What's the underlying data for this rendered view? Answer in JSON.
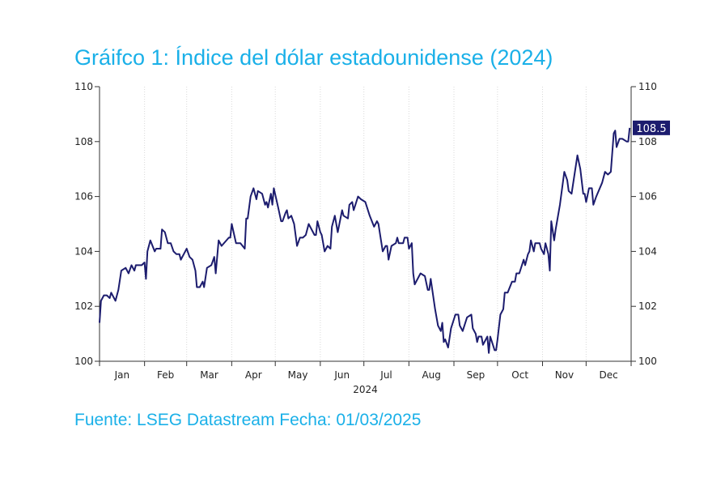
{
  "title": "Gráifco 1: Índice del dólar estadounidense (2024)",
  "source": "Fuente: LSEG Datastream Fecha: 01/03/2025",
  "chart_data": {
    "type": "line",
    "title": "Gráifco 1: Índice del dólar estadounidense (2024)",
    "xlabel": "2024",
    "ylabel": "",
    "ylim": [
      100,
      110
    ],
    "xlim_days": [
      0,
      366
    ],
    "yticks": [
      "100",
      "102",
      "104",
      "106",
      "108",
      "110"
    ],
    "ytick_values": [
      100,
      102,
      104,
      106,
      108,
      110
    ],
    "month_labels": [
      "Jan",
      "Feb",
      "Mar",
      "Apr",
      "May",
      "Jun",
      "Jul",
      "Aug",
      "Sep",
      "Oct",
      "Nov",
      "Dec"
    ],
    "month_start_days": [
      0,
      31,
      60,
      91,
      121,
      152,
      182,
      213,
      244,
      274,
      305,
      335,
      366
    ],
    "grid": "vertical dotted at month boundaries",
    "last_value_label": "108.5",
    "colors": {
      "line": "#1c1c6e",
      "badge": "#1c1c6e",
      "title": "#1ab0e8"
    },
    "series": [
      {
        "name": "Índice del dólar estadounidense",
        "points": [
          [
            0,
            101.4
          ],
          [
            1,
            102.2
          ],
          [
            3,
            102.4
          ],
          [
            5,
            102.4
          ],
          [
            7,
            102.3
          ],
          [
            8,
            102.5
          ],
          [
            11,
            102.2
          ],
          [
            13,
            102.6
          ],
          [
            15,
            103.3
          ],
          [
            18,
            103.4
          ],
          [
            20,
            103.2
          ],
          [
            22,
            103.5
          ],
          [
            24,
            103.3
          ],
          [
            25,
            103.5
          ],
          [
            29,
            103.5
          ],
          [
            31,
            103.6
          ],
          [
            32,
            103.0
          ],
          [
            33,
            104.0
          ],
          [
            35,
            104.4
          ],
          [
            38,
            104.0
          ],
          [
            39,
            104.1
          ],
          [
            42,
            104.1
          ],
          [
            43,
            104.8
          ],
          [
            45,
            104.7
          ],
          [
            47,
            104.3
          ],
          [
            49,
            104.3
          ],
          [
            51,
            104.0
          ],
          [
            53,
            103.9
          ],
          [
            55,
            103.9
          ],
          [
            56,
            103.7
          ],
          [
            58,
            103.9
          ],
          [
            60,
            104.1
          ],
          [
            62,
            103.8
          ],
          [
            64,
            103.7
          ],
          [
            66,
            103.3
          ],
          [
            67,
            102.7
          ],
          [
            69,
            102.7
          ],
          [
            71,
            102.9
          ],
          [
            72,
            102.7
          ],
          [
            74,
            103.4
          ],
          [
            77,
            103.5
          ],
          [
            79,
            103.8
          ],
          [
            80,
            103.2
          ],
          [
            82,
            104.4
          ],
          [
            84,
            104.2
          ],
          [
            89,
            104.5
          ],
          [
            90,
            104.5
          ],
          [
            91,
            105.0
          ],
          [
            94,
            104.3
          ],
          [
            97,
            104.3
          ],
          [
            100,
            104.1
          ],
          [
            101,
            105.2
          ],
          [
            102,
            105.2
          ],
          [
            104,
            106.0
          ],
          [
            106,
            106.3
          ],
          [
            108,
            105.9
          ],
          [
            109,
            106.2
          ],
          [
            112,
            106.1
          ],
          [
            114,
            105.7
          ],
          [
            115,
            105.8
          ],
          [
            116,
            105.6
          ],
          [
            118,
            106.1
          ],
          [
            119,
            105.7
          ],
          [
            120,
            106.3
          ],
          [
            123,
            105.6
          ],
          [
            125,
            105.1
          ],
          [
            126,
            105.1
          ],
          [
            128,
            105.4
          ],
          [
            129,
            105.5
          ],
          [
            130,
            105.2
          ],
          [
            132,
            105.3
          ],
          [
            134,
            105.0
          ],
          [
            136,
            104.2
          ],
          [
            138,
            104.5
          ],
          [
            140,
            104.5
          ],
          [
            142,
            104.6
          ],
          [
            144,
            105.0
          ],
          [
            148,
            104.6
          ],
          [
            149,
            104.6
          ],
          [
            150,
            105.1
          ],
          [
            152,
            104.7
          ],
          [
            153,
            104.6
          ],
          [
            155,
            104.0
          ],
          [
            157,
            104.2
          ],
          [
            159,
            104.1
          ],
          [
            160,
            104.9
          ],
          [
            162,
            105.3
          ],
          [
            164,
            104.7
          ],
          [
            167,
            105.5
          ],
          [
            168,
            105.3
          ],
          [
            171,
            105.2
          ],
          [
            172,
            105.7
          ],
          [
            174,
            105.8
          ],
          [
            175,
            105.5
          ],
          [
            178,
            106.0
          ],
          [
            180,
            105.9
          ],
          [
            183,
            105.8
          ],
          [
            186,
            105.3
          ],
          [
            189,
            104.9
          ],
          [
            191,
            105.1
          ],
          [
            192,
            105.0
          ],
          [
            195,
            104.0
          ],
          [
            197,
            104.2
          ],
          [
            198,
            104.2
          ],
          [
            199,
            103.7
          ],
          [
            201,
            104.2
          ],
          [
            204,
            104.3
          ],
          [
            205,
            104.5
          ],
          [
            206,
            104.3
          ],
          [
            209,
            104.3
          ],
          [
            210,
            104.5
          ],
          [
            212,
            104.5
          ],
          [
            213,
            104.1
          ],
          [
            215,
            104.3
          ],
          [
            216,
            103.2
          ],
          [
            217,
            102.8
          ],
          [
            221,
            103.2
          ],
          [
            224,
            103.1
          ],
          [
            226,
            102.6
          ],
          [
            227,
            102.6
          ],
          [
            228,
            103.0
          ],
          [
            231,
            101.9
          ],
          [
            233,
            101.3
          ],
          [
            235,
            101.1
          ],
          [
            236,
            101.4
          ],
          [
            237,
            100.7
          ],
          [
            238,
            100.8
          ],
          [
            240,
            100.5
          ],
          [
            242,
            101.2
          ],
          [
            245,
            101.7
          ],
          [
            246,
            101.7
          ],
          [
            247,
            101.7
          ],
          [
            248,
            101.3
          ],
          [
            250,
            101.1
          ],
          [
            253,
            101.6
          ],
          [
            256,
            101.7
          ],
          [
            257,
            101.2
          ],
          [
            259,
            101.0
          ],
          [
            260,
            100.7
          ],
          [
            261,
            100.9
          ],
          [
            263,
            100.9
          ],
          [
            264,
            100.6
          ],
          [
            267,
            100.9
          ],
          [
            268,
            100.3
          ],
          [
            269,
            100.9
          ],
          [
            272,
            100.4
          ],
          [
            273,
            100.4
          ],
          [
            274,
            100.8
          ],
          [
            276,
            101.7
          ],
          [
            278,
            101.9
          ],
          [
            279,
            102.5
          ],
          [
            281,
            102.5
          ],
          [
            284,
            102.9
          ],
          [
            286,
            102.9
          ],
          [
            287,
            103.2
          ],
          [
            289,
            103.2
          ],
          [
            292,
            103.7
          ],
          [
            293,
            103.5
          ],
          [
            295,
            103.9
          ],
          [
            296,
            104.0
          ],
          [
            297,
            104.4
          ],
          [
            299,
            104.0
          ],
          [
            300,
            104.3
          ],
          [
            303,
            104.3
          ],
          [
            304,
            104.1
          ],
          [
            306,
            103.9
          ],
          [
            307,
            104.3
          ],
          [
            309,
            103.9
          ],
          [
            310,
            103.3
          ],
          [
            311,
            105.1
          ],
          [
            313,
            104.4
          ],
          [
            314,
            104.8
          ],
          [
            317,
            105.7
          ],
          [
            320,
            106.9
          ],
          [
            322,
            106.6
          ],
          [
            323,
            106.2
          ],
          [
            325,
            106.1
          ],
          [
            329,
            107.5
          ],
          [
            331,
            107.0
          ],
          [
            333,
            106.1
          ],
          [
            334,
            106.1
          ],
          [
            335,
            105.8
          ],
          [
            337,
            106.3
          ],
          [
            339,
            106.3
          ],
          [
            340,
            105.7
          ],
          [
            342,
            106.0
          ],
          [
            346,
            106.5
          ],
          [
            348,
            106.9
          ],
          [
            350,
            106.8
          ],
          [
            352,
            106.9
          ],
          [
            354,
            108.3
          ],
          [
            355,
            108.4
          ],
          [
            356,
            107.8
          ],
          [
            358,
            108.1
          ],
          [
            360,
            108.1
          ],
          [
            363,
            108.0
          ],
          [
            364,
            108.0
          ],
          [
            365,
            108.5
          ]
        ]
      }
    ]
  }
}
